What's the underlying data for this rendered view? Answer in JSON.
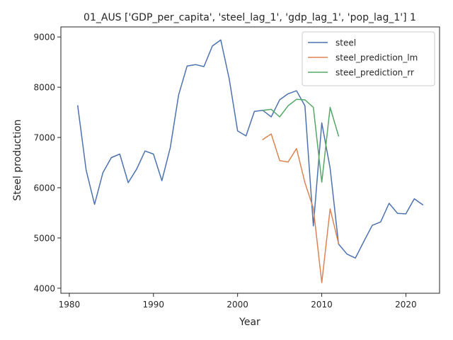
{
  "chart_data": {
    "type": "line",
    "title": "01_AUS ['GDP_per_capita', 'steel_lag_1', 'gdp_lag_1', 'pop_lag_1'] 1",
    "xlabel": "Year",
    "ylabel": "Steel production",
    "xlim": [
      1979.0,
      2024.0
    ],
    "ylim": [
      3900,
      9200
    ],
    "xticks": [
      1980,
      1990,
      2000,
      2010,
      2020
    ],
    "yticks": [
      4000,
      5000,
      6000,
      7000,
      8000,
      9000
    ],
    "grid": false,
    "legend_position": "top-right",
    "series": [
      {
        "name": "steel",
        "color": "#4c72b0",
        "x": [
          1981,
          1982,
          1983,
          1984,
          1985,
          1986,
          1987,
          1988,
          1989,
          1990,
          1991,
          1992,
          1993,
          1994,
          1995,
          1996,
          1997,
          1998,
          1999,
          2000,
          2001,
          2002,
          2003,
          2004,
          2005,
          2006,
          2007,
          2008,
          2009,
          2010,
          2011,
          2012,
          2013,
          2014,
          2015,
          2016,
          2017,
          2018,
          2019,
          2020,
          2021,
          2022
        ],
        "y": [
          7630,
          6350,
          5670,
          6300,
          6600,
          6670,
          6100,
          6370,
          6730,
          6670,
          6140,
          6800,
          7850,
          8420,
          8450,
          8410,
          8820,
          8940,
          8170,
          7130,
          7030,
          7520,
          7540,
          7410,
          7750,
          7870,
          7930,
          7630,
          5240,
          7290,
          6390,
          4880,
          4680,
          4600,
          4930,
          5250,
          5320,
          5690,
          5490,
          5480,
          5780,
          5660
        ]
      },
      {
        "name": "steel_prediction_lm",
        "color": "#dd8452",
        "x": [
          2003,
          2004,
          2005,
          2006,
          2007,
          2008,
          2009,
          2010,
          2011,
          2012
        ],
        "y": [
          6960,
          7070,
          6540,
          6510,
          6780,
          6100,
          5590,
          4110,
          5580,
          4890
        ]
      },
      {
        "name": "steel_prediction_rr",
        "color": "#55a868",
        "x": [
          2003,
          2004,
          2005,
          2006,
          2007,
          2008,
          2009,
          2010,
          2011,
          2012
        ],
        "y": [
          7540,
          7560,
          7410,
          7630,
          7760,
          7750,
          7600,
          6110,
          7600,
          7030
        ]
      }
    ]
  }
}
